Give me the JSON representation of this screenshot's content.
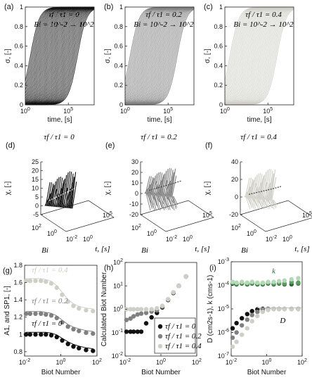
{
  "colors": {
    "black": "#111111",
    "mid_gray": "#808080",
    "light_gray": "#cfcfc7",
    "dark_green": "#2f6b3a",
    "mid_green": "#5a9e63",
    "light_green": "#b3d9b5"
  },
  "panels": {
    "a": {
      "label": "(a)",
      "ratio": "τf / τ1 = 0",
      "bi": "Bi = 10^-2 → 10^2"
    },
    "b": {
      "label": "(b)",
      "ratio": "τf / τ1 = 0.2",
      "bi": "Bi = 10^-2 → 10^2"
    },
    "c": {
      "label": "(c)",
      "ratio": "τf / τ1 = 0.4",
      "bi": "Bi = 10^-2 → 10^2"
    },
    "d": {
      "label": "(d)",
      "ratio": "τf / τ1 = 0"
    },
    "e": {
      "label": "(e)",
      "ratio": "τf / τ1 = 0.2"
    },
    "f": {
      "label": "(f)",
      "ratio": "τf / τ1 = 0.4"
    },
    "g": {
      "label": "(g)"
    },
    "h": {
      "label": "(h)"
    },
    "i": {
      "label": "(i)"
    }
  },
  "chart_data": [
    {
      "id": "a",
      "type": "line",
      "xlabel": "time, [s]",
      "ylabel": "σ, [-]",
      "xscale": "log",
      "xlim": [
        1,
        100000000
      ],
      "ylim": [
        0,
        1
      ],
      "yticks": [
        "0",
        "0.2",
        "0.4",
        "0.6",
        "0.8",
        "1"
      ],
      "xticks": [
        "10^0",
        "10^5"
      ],
      "series_note": "family of sigmoidal curves, Bi = 10^-2 → 10^2",
      "color": "black"
    },
    {
      "id": "b",
      "type": "line",
      "xlabel": "time, [s]",
      "ylabel": "σ, [-]",
      "xscale": "log",
      "xlim": [
        1,
        100000000
      ],
      "ylim": [
        0,
        1
      ],
      "yticks": [
        "0",
        "0.2",
        "0.4",
        "0.6",
        "0.8",
        "1"
      ],
      "xticks": [
        "10^0",
        "10^5"
      ],
      "color": "mid_gray"
    },
    {
      "id": "c",
      "type": "line",
      "xlabel": "time, [s]",
      "ylabel": "σ, [-]",
      "xscale": "log",
      "xlim": [
        1,
        100000000
      ],
      "ylim": [
        0,
        1
      ],
      "yticks": [
        "0",
        "0.2",
        "0.4",
        "0.6",
        "0.8",
        "1"
      ],
      "xticks": [
        "10^0",
        "10^5"
      ],
      "color": "light_gray"
    },
    {
      "id": "d",
      "type": "line",
      "ylabel": "χ, [-]",
      "xlabel": "Bi",
      "zlabel": "t, [s]",
      "zlim": [
        -5,
        25
      ],
      "zticks": [
        "-5",
        "0",
        "5",
        "10",
        "15",
        "20",
        "25"
      ],
      "bi_ticks": [
        "10^2",
        "10^0",
        "10^-2"
      ],
      "t_ticks": [
        "10^0",
        "10^5"
      ],
      "color": "black"
    },
    {
      "id": "e",
      "type": "line",
      "ylabel": "χ, [-]",
      "xlabel": "Bi",
      "zlabel": "t, [s]",
      "zlim": [
        -20,
        30
      ],
      "zticks": [
        "-20",
        "-10",
        "0",
        "10",
        "20",
        "30"
      ],
      "bi_ticks": [
        "10^2",
        "10^0",
        "10^-2"
      ],
      "t_ticks": [
        "10^0",
        "10^5"
      ],
      "color": "mid_gray"
    },
    {
      "id": "f",
      "type": "line",
      "ylabel": "χ, [-]",
      "xlabel": "Bi",
      "zlabel": "t, [s]",
      "zlim": [
        -20,
        40
      ],
      "zticks": [
        "-20",
        "0",
        "20",
        "40"
      ],
      "bi_ticks": [
        "10^2",
        "10^0",
        "10^-2"
      ],
      "t_ticks": [
        "10^0",
        "10^5"
      ],
      "color": "light_gray"
    },
    {
      "id": "g",
      "type": "scatter",
      "xlabel": "Biot Number",
      "ylabel": "A1, and SP1, [-]",
      "xscale": "log",
      "xlim": [
        0.01,
        100
      ],
      "ylim": [
        0.75,
        1.8
      ],
      "yticks": [
        "0.8",
        "1",
        "1.2",
        "1.4",
        "1.6",
        "1.8"
      ],
      "xticks": [
        "10^-2",
        "10^0",
        "10^2"
      ],
      "annotations": [
        "τf / τ1 = 0.4",
        "τf / τ1 = 0.2",
        "τf / τ1 = 0"
      ],
      "series": [
        {
          "name": "τf / τ1 = 0",
          "color": "black",
          "x": [
            0.012,
            0.02,
            0.04,
            0.08,
            0.15,
            0.3,
            0.6,
            1.2,
            2.5,
            5,
            10,
            25,
            60
          ],
          "y": [
            1.0,
            1.0,
            1.0,
            1.0,
            1.0,
            0.99,
            0.97,
            0.93,
            0.89,
            0.86,
            0.84,
            0.82,
            0.81
          ]
        },
        {
          "name": "τf / τ1 = 0.2",
          "color": "mid_gray",
          "x": [
            0.012,
            0.02,
            0.04,
            0.08,
            0.15,
            0.3,
            0.6,
            1.2,
            2.5,
            5,
            10,
            25,
            60
          ],
          "y": [
            1.24,
            1.24,
            1.24,
            1.24,
            1.23,
            1.22,
            1.19,
            1.14,
            1.09,
            1.06,
            1.04,
            1.02,
            1.01
          ]
        },
        {
          "name": "τf / τ1 = 0.4",
          "color": "light_gray",
          "x": [
            0.012,
            0.02,
            0.04,
            0.08,
            0.15,
            0.3,
            0.6,
            1.2,
            2.5,
            5,
            10,
            25,
            60
          ],
          "y": [
            1.62,
            1.62,
            1.62,
            1.62,
            1.61,
            1.59,
            1.54,
            1.46,
            1.38,
            1.33,
            1.3,
            1.28,
            1.27
          ]
        }
      ]
    },
    {
      "id": "h",
      "type": "scatter",
      "xlabel": "Biot Number",
      "ylabel": "Calculated Biot Number",
      "xscale": "log",
      "yscale": "log",
      "xlim": [
        0.01,
        100
      ],
      "ylim": [
        0.01,
        100
      ],
      "yticks": [
        "10^-2",
        "10^-1",
        "10^0",
        "10^1",
        "10^2"
      ],
      "xticks": [
        "10^-2",
        "10^0",
        "10^2"
      ],
      "legend": {
        "entries": [
          "τf / τ1 = 0",
          "τf / τ1 = 0.2",
          "τf / τ1 = 0.4"
        ],
        "position": "bottom-right"
      },
      "series": [
        {
          "name": "τf / τ1 = 0",
          "color": "black",
          "x": [
            0.012,
            0.02,
            0.03,
            0.05,
            0.08,
            0.15,
            0.3,
            0.6,
            1.2,
            2.5,
            5,
            10,
            25
          ],
          "y": [
            0.11,
            0.11,
            0.11,
            0.11,
            0.11,
            0.25,
            0.45,
            0.7,
            1.2,
            2.5,
            5.0,
            10.0,
            25.0
          ]
        },
        {
          "name": "τf / τ1 = 0.2",
          "color": "mid_gray",
          "x": [
            0.012,
            0.02,
            0.03,
            0.05,
            0.08,
            0.15,
            0.3,
            0.6,
            1.2,
            2.5,
            5,
            10,
            25
          ],
          "y": [
            0.35,
            0.4,
            0.5,
            0.6,
            0.65,
            0.7,
            0.8,
            0.9,
            1.3,
            2.6,
            5.2,
            10.0,
            25.0
          ]
        },
        {
          "name": "τf / τ1 = 0.4",
          "color": "light_gray",
          "x": [
            0.012,
            0.02,
            0.03,
            0.05,
            0.08,
            0.15,
            0.3,
            0.6,
            1.2,
            2.5,
            5,
            10,
            25
          ],
          "y": [
            1.0,
            1.0,
            1.0,
            1.0,
            1.0,
            1.0,
            1.0,
            1.1,
            1.4,
            2.7,
            5.3,
            10.0,
            25.0
          ]
        }
      ]
    },
    {
      "id": "i",
      "type": "scatter",
      "xlabel": "Biot Number",
      "ylabel": "D (cm2s-1), k (cms-1)",
      "xscale": "log",
      "yscale": "log",
      "xlim": [
        0.01,
        100
      ],
      "ylim": [
        1e-07,
        0.001
      ],
      "yticks": [
        "10^-7",
        "10^-6",
        "10^-5",
        "10^-4",
        "10^-3"
      ],
      "xticks": [
        "10^-2",
        "10^0",
        "10^2"
      ],
      "annotations": [
        "k",
        "D"
      ],
      "series": [
        {
          "name": "k (τf / τ1 = 0)",
          "color": "dark_green",
          "x": [
            0.012,
            0.02,
            0.04,
            0.08,
            0.15,
            0.3,
            0.6,
            1.2,
            2.5,
            5,
            10,
            25,
            60
          ],
          "y": [
            0.00012,
            0.00011,
            0.00012,
            0.00011,
            0.00012,
            0.00011,
            0.00011,
            0.00012,
            0.00011,
            0.00012,
            0.00011,
            0.00011,
            0.00012
          ]
        },
        {
          "name": "k (τf / τ1 = 0.2)",
          "color": "mid_green",
          "x": [
            0.012,
            0.02,
            0.04,
            0.08,
            0.15,
            0.3,
            0.6,
            1.2,
            2.5,
            5,
            10,
            25,
            60
          ],
          "y": [
            0.00013,
            0.00012,
            0.00013,
            0.00012,
            0.00013,
            0.00012,
            0.00012,
            0.00013,
            0.00012,
            0.00013,
            0.00012,
            0.00014,
            0.00013
          ]
        },
        {
          "name": "k (τf / τ1 = 0.4)",
          "color": "light_green",
          "x": [
            0.012,
            0.02,
            0.04,
            0.08,
            0.15,
            0.3,
            0.6,
            1.2,
            2.5,
            5,
            10,
            25,
            60
          ],
          "y": [
            0.00014,
            0.00013,
            0.00014,
            0.00013,
            0.00014,
            0.00013,
            0.00013,
            0.00014,
            0.00014,
            0.00015,
            0.00016,
            0.00018,
            0.0002
          ]
        },
        {
          "name": "D (τf / τ1 = 0)",
          "color": "black",
          "x": [
            0.012,
            0.02,
            0.04,
            0.08,
            0.15,
            0.3,
            0.6,
            1.2,
            2.5,
            5,
            10,
            25,
            60
          ],
          "y": [
            1.5e-06,
            2.5e-06,
            4e-06,
            6e-06,
            8e-06,
            9.5e-06,
            1e-05,
            1e-05,
            1e-05,
            1e-05,
            1e-05,
            1e-05,
            1e-05
          ]
        },
        {
          "name": "D (τf / τ1 = 0.2)",
          "color": "mid_gray",
          "x": [
            0.012,
            0.02,
            0.04,
            0.08,
            0.15,
            0.3,
            0.6,
            1.2,
            2.5,
            5,
            10,
            25,
            60
          ],
          "y": [
            6e-07,
            1e-06,
            2e-06,
            3.5e-06,
            5.5e-06,
            7.5e-06,
            9e-06,
            1e-05,
            1e-05,
            1e-05,
            1e-05,
            1e-05,
            1e-05
          ]
        },
        {
          "name": "D (τf / τ1 = 0.4)",
          "color": "light_gray",
          "x": [
            0.012,
            0.02,
            0.04,
            0.08,
            0.15,
            0.3,
            0.6,
            1.2,
            2.5,
            5,
            10,
            25,
            60
          ],
          "y": [
            2.5e-07,
            4e-07,
            8e-07,
            1.5e-06,
            3e-06,
            5e-06,
            7.5e-06,
            9e-06,
            1e-05,
            1e-05,
            1e-05,
            1e-05,
            1e-05
          ]
        }
      ]
    }
  ]
}
